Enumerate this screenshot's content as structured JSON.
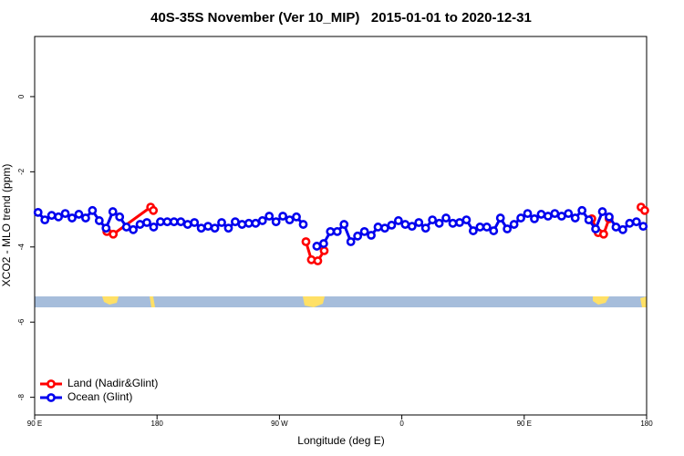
{
  "chart_data": {
    "type": "line",
    "title": "40S-35S November (Ver 10_MIP)   2015-01-01 to 2020-12-31",
    "xlabel": "Longitude (deg E)",
    "ylabel": "XCO2 - MLO trend (ppm)",
    "xlim": [
      90,
      540
    ],
    "ylim": [
      -8.47,
      1.6
    ],
    "xticks": [
      {
        "value": 90,
        "label": "90 E"
      },
      {
        "value": 180,
        "label": "180"
      },
      {
        "value": 270,
        "label": "90 W"
      },
      {
        "value": 360,
        "label": "0"
      },
      {
        "value": 450,
        "label": "90 E"
      },
      {
        "value": 540,
        "label": "180"
      }
    ],
    "yticks": [
      -8,
      -6,
      -4,
      -2,
      0
    ],
    "legend": "bottom-left",
    "series": [
      {
        "name": "Land (Nadir&Glint)",
        "color": "#ff0000",
        "x": [
          143.1,
          147.8,
          175.3,
          177.3,
          200,
          289.5,
          293.5,
          298.2,
          302.9,
          400,
          499.7,
          504.4,
          508.4,
          512.4,
          520,
          535.9,
          538.6
        ],
        "values": [
          -3.59,
          -3.66,
          -2.94,
          -3.03,
          null,
          -3.86,
          -4.34,
          -4.37,
          -4.1,
          null,
          -3.25,
          -3.62,
          -3.66,
          -3.25,
          null,
          -2.94,
          -3.03
        ]
      },
      {
        "name": "Ocean (Glint)",
        "color": "#0000ee",
        "x": [
          92.5,
          97.5,
          102.5,
          107.5,
          112.5,
          117.5,
          122.5,
          127.5,
          132.5,
          137.5,
          142.5,
          147.5,
          152.5,
          157.5,
          162.5,
          167.5,
          172.5,
          177.5,
          182.5,
          187.5,
          192.5,
          197.5,
          202.5,
          207.5,
          212.5,
          217.5,
          222.5,
          227.5,
          232.5,
          237.5,
          242.5,
          247.5,
          252.5,
          257.5,
          262.5,
          267.5,
          272.5,
          277.5,
          282.5,
          287.5,
          292.5,
          297.5,
          302.5,
          307.5,
          312.5,
          317.5,
          322.5,
          327.5,
          332.5,
          337.5,
          342.5,
          347.5,
          352.5,
          357.5,
          362.5,
          367.5,
          372.5,
          377.5,
          382.5,
          387.5,
          392.5,
          397.5,
          402.5,
          407.5,
          412.5,
          417.5,
          422.5,
          427.5,
          432.5,
          437.5,
          442.5,
          447.5,
          452.5,
          457.5,
          462.5,
          467.5,
          472.5,
          477.5,
          482.5,
          487.5,
          492.5,
          497.5,
          502.5,
          507.5,
          512.5,
          517.5,
          522.5,
          527.5,
          532.5,
          537.5
        ],
        "values": [
          -3.08,
          -3.28,
          -3.16,
          -3.2,
          -3.11,
          -3.23,
          -3.13,
          -3.23,
          -3.03,
          -3.3,
          -3.5,
          -3.06,
          -3.2,
          -3.47,
          -3.54,
          -3.4,
          -3.35,
          -3.47,
          -3.33,
          -3.33,
          -3.33,
          -3.33,
          -3.4,
          -3.35,
          -3.5,
          -3.45,
          -3.5,
          -3.35,
          -3.5,
          -3.33,
          -3.4,
          -3.37,
          -3.37,
          -3.3,
          -3.18,
          -3.33,
          -3.18,
          -3.28,
          -3.2,
          -3.4,
          null,
          -3.98,
          -3.91,
          -3.59,
          -3.59,
          -3.4,
          -3.86,
          -3.71,
          -3.59,
          -3.69,
          -3.47,
          -3.5,
          -3.42,
          -3.3,
          -3.4,
          -3.45,
          -3.35,
          -3.5,
          -3.28,
          -3.37,
          -3.23,
          -3.37,
          -3.35,
          -3.28,
          -3.57,
          -3.47,
          -3.47,
          -3.57,
          -3.23,
          -3.52,
          -3.4,
          -3.23,
          -3.11,
          -3.25,
          -3.13,
          -3.18,
          -3.11,
          -3.18,
          -3.11,
          -3.23,
          -3.03,
          -3.28,
          -3.52,
          -3.06,
          -3.2,
          -3.47,
          -3.54,
          -3.37,
          -3.33,
          -3.45
        ]
      }
    ]
  }
}
